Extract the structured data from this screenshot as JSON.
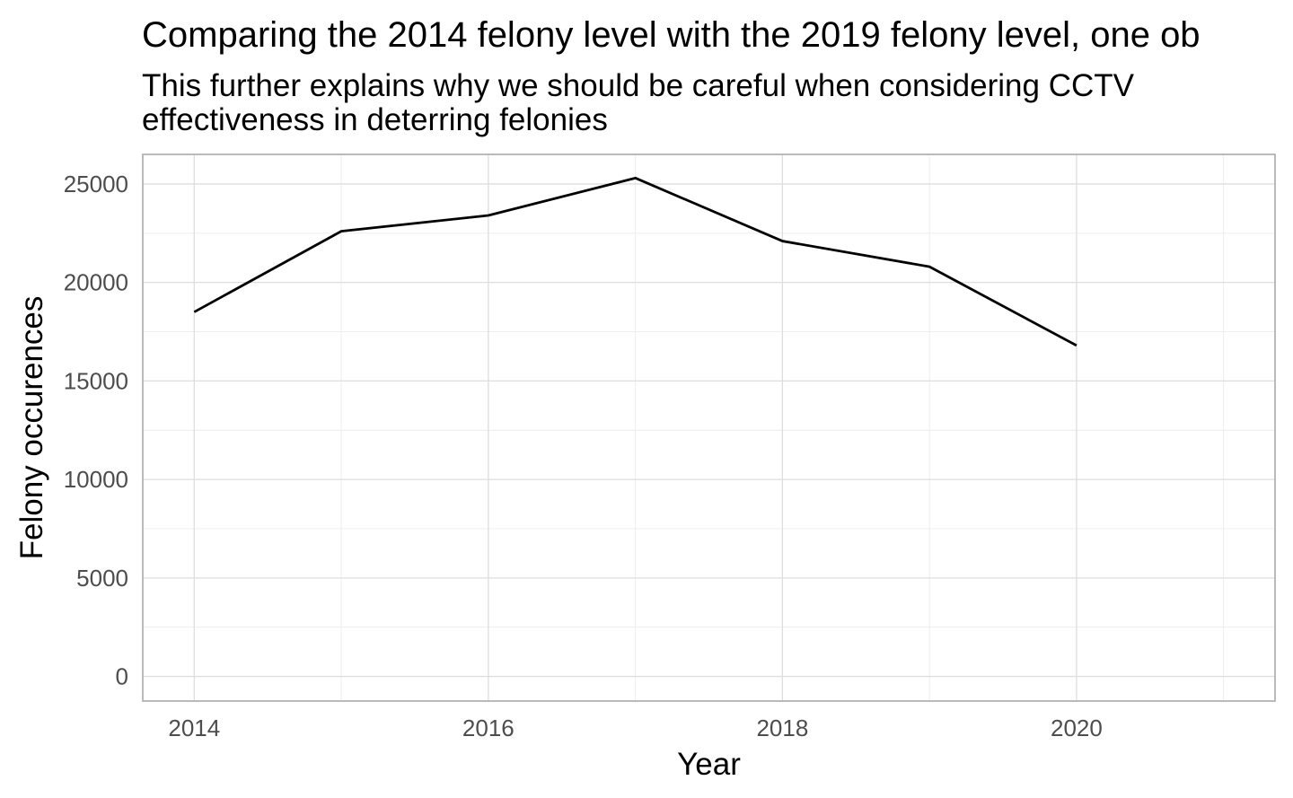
{
  "chart_data": {
    "type": "line",
    "title": "Comparing the 2014 felony level with the 2019 felony level, one ob",
    "subtitle_lines": [
      "This further explains why we should be careful when considering CCTV",
      "effectiveness in deterring felonies"
    ],
    "xlabel": "Year",
    "ylabel": "Felony occurences",
    "xlim": [
      2013.65,
      2021.35
    ],
    "ylim": [
      -1250,
      26500
    ],
    "x_ticks": [
      2014,
      2016,
      2018,
      2020
    ],
    "x_tick_labels": [
      "2014",
      "2016",
      "2018",
      "2020"
    ],
    "y_ticks": [
      0,
      5000,
      10000,
      15000,
      20000,
      25000
    ],
    "y_tick_labels": [
      "0",
      "5000",
      "10000",
      "15000",
      "20000",
      "25000"
    ],
    "x_minor_ticks": [
      2015,
      2017,
      2019,
      2021
    ],
    "y_minor_ticks": [
      2500,
      7500,
      12500,
      17500,
      22500
    ],
    "grid": true,
    "legend": "none",
    "line_color": "#000000",
    "series": [
      {
        "x": [
          2014,
          2015,
          2016,
          2017,
          2018,
          2019,
          2020
        ],
        "values": [
          18500,
          22600,
          23400,
          25300,
          22100,
          20800,
          16800
        ]
      }
    ]
  }
}
